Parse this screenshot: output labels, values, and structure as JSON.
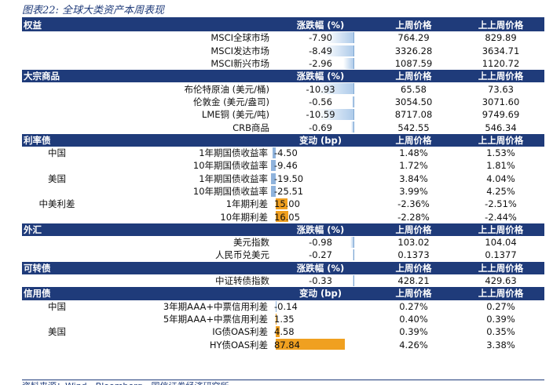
{
  "title": "图表22:  全球大类资产本周表现",
  "source_partial": "资料来源：Wind，Bloomberg，国信证券经济研究所",
  "sections": [
    {
      "name": "权益",
      "change_header": "涨跌幅 (%)",
      "last_week_header": "上周价格",
      "prev_week_header": "上上周价格",
      "rows": [
        {
          "region": "",
          "label": "MSCI全球市场",
          "change": "-7.90",
          "change_value": -7.9,
          "last": "764.29",
          "prev": "829.89"
        },
        {
          "region": "",
          "label": "MSCI发达市场",
          "change": "-8.49",
          "change_value": -8.49,
          "last": "3326.28",
          "prev": "3634.71"
        },
        {
          "region": "",
          "label": "MSCI新兴市场",
          "change": "-2.96",
          "change_value": -2.96,
          "last": "1087.59",
          "prev": "1120.72"
        }
      ]
    },
    {
      "name": "大宗商品",
      "change_header": "涨跌幅 (%)",
      "last_week_header": "上周价格",
      "prev_week_header": "上上周价格",
      "rows": [
        {
          "region": "",
          "label": "布伦特原油 (美元/桶)",
          "change": "-10.93",
          "change_value": -10.93,
          "last": "65.58",
          "prev": "73.63"
        },
        {
          "region": "",
          "label": "伦敦金 (美元/盎司)",
          "change": "-0.56",
          "change_value": -0.56,
          "last": "3054.50",
          "prev": "3071.60"
        },
        {
          "region": "",
          "label": "LME铜 (美元/吨)",
          "change": "-10.59",
          "change_value": -10.59,
          "last": "8717.08",
          "prev": "9749.69"
        },
        {
          "region": "",
          "label": "CRB商品",
          "change": "-0.69",
          "change_value": -0.69,
          "last": "542.55",
          "prev": "546.34"
        }
      ]
    },
    {
      "name": "利率债",
      "change_header": "变动 (bp)",
      "last_week_header": "上周价格",
      "prev_week_header": "上上周价格",
      "rows": [
        {
          "region": "中国",
          "label": "1年期国债收益率",
          "change": "-4.50",
          "change_value": -4.5,
          "last": "1.48%",
          "prev": "1.53%"
        },
        {
          "region": "",
          "label": "10年期国债收益率",
          "change": "-9.46",
          "change_value": -9.46,
          "last": "1.72%",
          "prev": "1.81%"
        },
        {
          "region": "美国",
          "label": "1年期国债收益率",
          "change": "-19.50",
          "change_value": -19.5,
          "last": "3.84%",
          "prev": "4.04%"
        },
        {
          "region": "",
          "label": "10年期国债收益率",
          "change": "-25.51",
          "change_value": -25.51,
          "last": "3.99%",
          "prev": "4.25%"
        },
        {
          "region": "中美利差",
          "label": "1年期利差",
          "change": "15.00",
          "change_value": 15.0,
          "last": "-2.36%",
          "prev": "-2.51%"
        },
        {
          "region": "",
          "label": "10年期利差",
          "change": "16.05",
          "change_value": 16.05,
          "last": "-2.28%",
          "prev": "-2.44%"
        }
      ]
    },
    {
      "name": "外汇",
      "change_header": "涨跌幅 (%)",
      "last_week_header": "上周价格",
      "prev_week_header": "上上周价格",
      "rows": [
        {
          "region": "",
          "label": "美元指数",
          "change": "-0.98",
          "change_value": -0.98,
          "last": "103.02",
          "prev": "104.04"
        },
        {
          "region": "",
          "label": "人民币兑美元",
          "change": "-0.27",
          "change_value": -0.27,
          "last": "0.1373",
          "prev": "0.1377"
        }
      ]
    },
    {
      "name": "可转债",
      "change_header": "涨跌幅 (%)",
      "last_week_header": "上周价格",
      "prev_week_header": "上上周价格",
      "rows": [
        {
          "region": "",
          "label": "中证转债指数",
          "change": "-0.33",
          "change_value": -0.33,
          "last": "428.21",
          "prev": "429.63"
        }
      ]
    },
    {
      "name": "信用债",
      "change_header": "变动 (bp)",
      "last_week_header": "上周价格",
      "prev_week_header": "上上周价格",
      "rows": [
        {
          "region": "中国",
          "label": "3年期AAA+中票信用利差",
          "change": "-0.14",
          "change_value": -0.14,
          "last": "0.27%",
          "prev": "0.27%"
        },
        {
          "region": "",
          "label": "5年期AAA+中票信用利差",
          "change": "1.35",
          "change_value": 1.35,
          "last": "0.40%",
          "prev": "0.39%"
        },
        {
          "region": "美国",
          "label": "IG债OAS利差",
          "change": "4.58",
          "change_value": 4.58,
          "last": "0.39%",
          "prev": "0.35%"
        },
        {
          "region": "",
          "label": "HY债OAS利差",
          "change": "87.84",
          "change_value": 87.84,
          "last": "4.26%",
          "prev": "3.38%"
        }
      ]
    }
  ],
  "colors": {
    "header_bg": "#1f3b7a",
    "neg_bar": "#aecbea",
    "pos_bar": "#f0a020"
  }
}
